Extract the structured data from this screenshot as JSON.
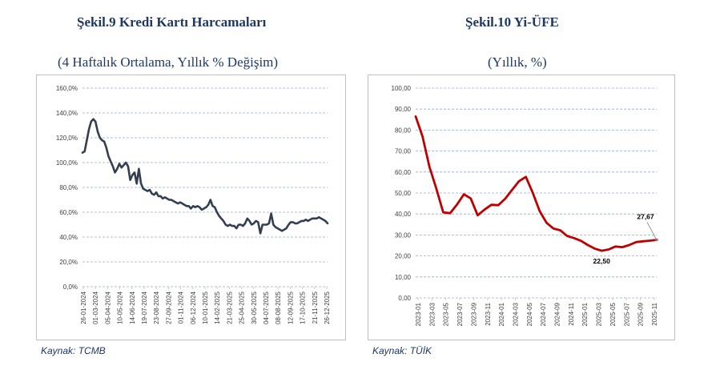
{
  "left": {
    "title": "Şekil.9 Kredi Kartı Harcamaları",
    "subtitle": "(4 Haftalık Ortalama, Yıllık % Değişim)",
    "source": "Kaynak: TCMB"
  },
  "right": {
    "title": "Şekil.10 Yi-ÜFE",
    "subtitle": "(Yıllık, %)",
    "source": "Kaynak: TÜİK"
  },
  "chart_data": [
    {
      "type": "line",
      "title": "Şekil.9 Kredi Kartı Harcamaları",
      "subtitle": "(4 Haftalık Ortalama, Yıllık % Değişim)",
      "color": "#333f50",
      "grid": true,
      "ylim": [
        0,
        160
      ],
      "yticks": [
        "0,0%",
        "20,0%",
        "40,0%",
        "60,0%",
        "80,0%",
        "100,0%",
        "120,0%",
        "140,0%",
        "160,0%"
      ],
      "xticks": [
        "26-01-2024",
        "01-03-2024",
        "05-04-2024",
        "10-05-2024",
        "14-06-2024",
        "19-07-2024",
        "23-08-2024",
        "27-09-2024",
        "01-11-2024",
        "06-12-2024",
        "10-01-2025",
        "14-02-2025",
        "21-03-2025",
        "25-04-2025",
        "30-05-2025",
        "04-07-2025",
        "08-08-2025",
        "12-09-2025",
        "17-10-2025",
        "21-11-2025",
        "26-12-2025"
      ],
      "values": [
        108,
        109,
        118,
        127,
        133,
        135,
        133,
        125,
        120,
        118,
        117,
        112,
        105,
        101,
        97,
        92,
        95,
        99,
        96,
        98,
        100,
        97,
        86,
        90,
        92,
        83,
        95,
        83,
        79,
        78,
        77,
        78,
        75,
        74,
        76,
        73,
        73,
        71,
        72,
        71,
        70,
        70,
        69,
        68,
        67,
        68,
        67,
        66,
        65,
        65,
        63,
        65,
        64,
        65,
        64,
        62,
        63,
        64,
        66,
        70,
        65,
        64,
        60,
        57,
        55,
        53,
        50,
        49,
        50,
        49,
        49,
        47,
        50,
        50,
        49,
        51,
        55,
        53,
        50,
        51,
        53,
        52,
        43,
        50,
        50,
        50,
        51,
        59,
        50,
        48,
        47,
        46,
        45,
        46,
        47,
        50,
        52,
        52,
        51,
        51,
        52,
        53,
        53,
        54,
        53,
        54,
        55,
        55,
        55,
        56,
        55,
        54,
        53,
        51
      ]
    },
    {
      "type": "line",
      "title": "Şekil.10 Yi-ÜFE",
      "subtitle": "(Yıllık, %)",
      "color": "#c00000",
      "grid": true,
      "ylim": [
        0,
        100
      ],
      "yticks": [
        "0,00",
        "10,00",
        "20,00",
        "30,00",
        "40,00",
        "50,00",
        "60,00",
        "70,00",
        "80,00",
        "90,00",
        "100,00"
      ],
      "xticks": [
        "2023-01",
        "2023-03",
        "2023-05",
        "2023-07",
        "2023-09",
        "2023-11",
        "2024-01",
        "2024-03",
        "2024-05",
        "2024-07",
        "2024-09",
        "2024-11",
        "2025-01",
        "2025-03",
        "2025-05",
        "2025-07",
        "2025-09",
        "2025-11"
      ],
      "values": [
        86.5,
        76.9,
        62.5,
        52.1,
        40.8,
        40.4,
        44.5,
        49.4,
        47.4,
        39.4,
        42.1,
        44.4,
        44.2,
        47.3,
        51.5,
        55.6,
        57.7,
        50.1,
        41.4,
        35.8,
        33.1,
        32.2,
        29.5,
        28.5,
        27.2,
        25.2,
        23.5,
        22.5,
        23.1,
        24.5,
        24.2,
        25.2,
        26.6,
        27.0,
        27.3,
        27.67
      ],
      "annotations": [
        {
          "label": "22,50",
          "index": 27
        },
        {
          "label": "27,67",
          "index": 35
        }
      ]
    }
  ]
}
